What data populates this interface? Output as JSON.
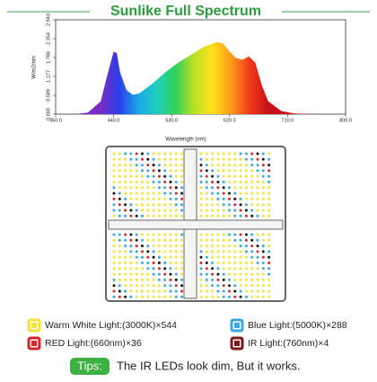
{
  "chart_data": {
    "type": "area",
    "title": "Sunlike Full Spectrum",
    "x_label": "Wavelength (nm)",
    "y_label": "W/m2/nm",
    "x": [
      350,
      380,
      400,
      420,
      430,
      440,
      445,
      450,
      460,
      470,
      480,
      500,
      520,
      540,
      560,
      580,
      600,
      610,
      620,
      630,
      640,
      650,
      660,
      670,
      680,
      700,
      720,
      750,
      800
    ],
    "values": [
      0,
      0,
      0.05,
      0.4,
      1.2,
      1.95,
      1.9,
      1.3,
      0.75,
      0.6,
      0.65,
      0.95,
      1.3,
      1.6,
      1.85,
      2.1,
      2.25,
      2.2,
      1.95,
      1.75,
      1.7,
      1.8,
      1.6,
      0.9,
      0.4,
      0.1,
      0.02,
      0,
      0
    ],
    "colors": [
      "#7a2cc4",
      "#2a3ee8",
      "#1aa6e8",
      "#1fd0c0",
      "#2fd05a",
      "#b8e026",
      "#ffe01a",
      "#ff9a1a",
      "#f03a1a",
      "#c8121a"
    ],
    "xlim": [
      350,
      800
    ],
    "ylim": [
      0,
      2.943
    ],
    "xticks": [
      {
        "value": 350,
        "label": "350.0"
      },
      {
        "value": 440,
        "label": "440.0"
      },
      {
        "value": 530,
        "label": "530.0"
      },
      {
        "value": 620,
        "label": "620.0"
      },
      {
        "value": 710,
        "label": "710.0"
      },
      {
        "value": 800,
        "label": "800.0"
      }
    ],
    "yticks": [
      {
        "value": 0,
        "label": "0.000"
      },
      0.589,
      1.177,
      1.766,
      2.354,
      2.943
    ]
  },
  "legend": [
    {
      "text": "Warm White Light:(3000K)×544",
      "color": "#f2e23a"
    },
    {
      "text": "Blue Light:(5000K)×288",
      "color": "#3aa8e0"
    },
    {
      "text": "RED Light:(660nm)×36",
      "color": "#d9262a"
    },
    {
      "text": "IR Light:(760nm)×4",
      "color": "#7a1a1a"
    }
  ],
  "tips": {
    "label": "Tips:",
    "text": "The IR LEDs look dim, But it works."
  }
}
